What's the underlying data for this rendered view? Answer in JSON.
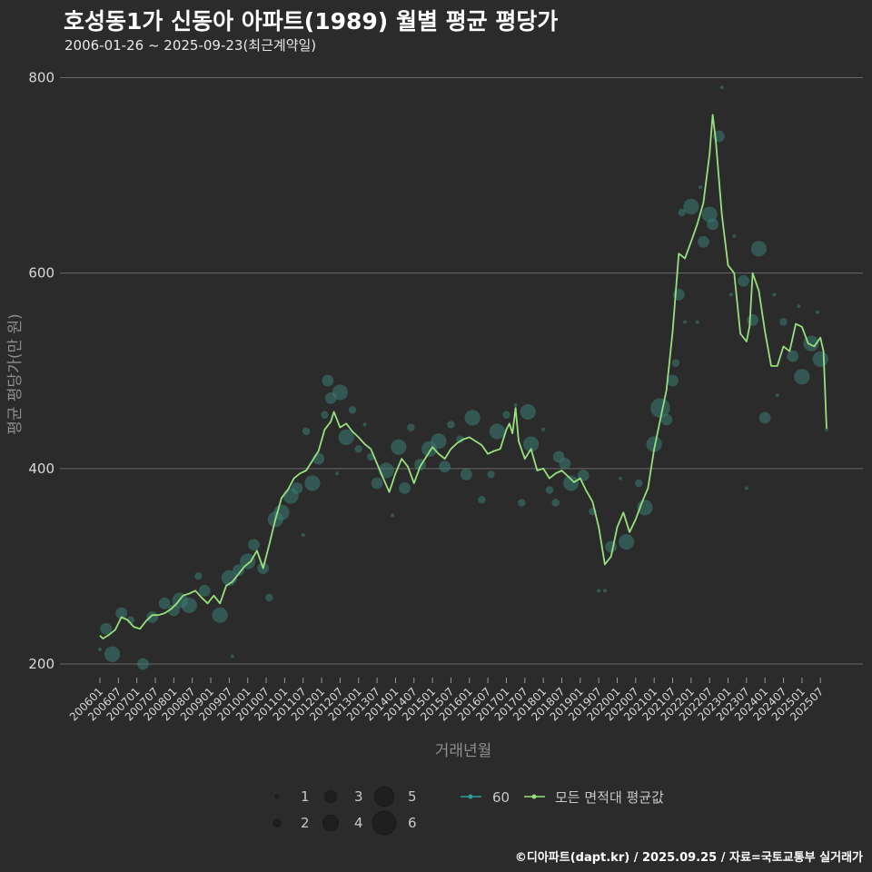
{
  "header": {
    "title": "호성동1가 신동아 아파트(1989) 월별 평균 평당가",
    "subtitle": "2006-01-26 ~ 2025-09-23(최근계약일)"
  },
  "footer": {
    "credit": "©디아파트(dapt.kr) / 2025.09.25 / 자료=국토교통부 실거래가"
  },
  "colors": {
    "background": "#2b2b2c",
    "bubble": "#3a7d75",
    "series_60": "#2aa198",
    "average_line": "#98e07e",
    "grid": "#6a6a6a"
  },
  "chart_data": {
    "type": "line",
    "xlabel": "거래년월",
    "ylabel": "평균 평당가(만 원)",
    "ylim": [
      180,
      800
    ],
    "yticks": [
      200,
      400,
      600,
      800
    ],
    "x_tick_labels": [
      "200601",
      "200607",
      "200701",
      "200707",
      "200801",
      "200807",
      "200901",
      "200907",
      "201001",
      "201007",
      "201101",
      "201107",
      "201201",
      "201207",
      "201301",
      "201307",
      "201401",
      "201407",
      "201501",
      "201507",
      "201601",
      "201607",
      "201701",
      "201707",
      "201801",
      "201807",
      "201901",
      "201907",
      "202001",
      "202007",
      "202101",
      "202107",
      "202201",
      "202207",
      "202301",
      "202307",
      "202401",
      "202407",
      "202501",
      "202507"
    ],
    "grid": true,
    "legend_position": "bottom",
    "size_legend": [
      1,
      2,
      3,
      4,
      5,
      6
    ],
    "series": [
      {
        "name": "모든 면적대 평균값",
        "points": [
          [
            "2006-01",
            229
          ],
          [
            "2006-02",
            226
          ],
          [
            "2006-04",
            230
          ],
          [
            "2006-06",
            235
          ],
          [
            "2006-08",
            248
          ],
          [
            "2006-10",
            245
          ],
          [
            "2006-12",
            238
          ],
          [
            "2007-02",
            236
          ],
          [
            "2007-04",
            244
          ],
          [
            "2007-06",
            250
          ],
          [
            "2007-08",
            250
          ],
          [
            "2007-10",
            252
          ],
          [
            "2007-12",
            256
          ],
          [
            "2008-02",
            262
          ],
          [
            "2008-04",
            270
          ],
          [
            "2008-06",
            272
          ],
          [
            "2008-08",
            275
          ],
          [
            "2008-10",
            268
          ],
          [
            "2008-12",
            262
          ],
          [
            "2009-02",
            270
          ],
          [
            "2009-04",
            262
          ],
          [
            "2009-06",
            280
          ],
          [
            "2009-08",
            284
          ],
          [
            "2009-10",
            292
          ],
          [
            "2009-12",
            300
          ],
          [
            "2010-02",
            305
          ],
          [
            "2010-04",
            316
          ],
          [
            "2010-06",
            298
          ],
          [
            "2010-08",
            322
          ],
          [
            "2010-10",
            348
          ],
          [
            "2010-12",
            370
          ],
          [
            "2011-02",
            378
          ],
          [
            "2011-04",
            390
          ],
          [
            "2011-06",
            395
          ],
          [
            "2011-08",
            398
          ],
          [
            "2011-10",
            408
          ],
          [
            "2011-12",
            418
          ],
          [
            "2012-02",
            440
          ],
          [
            "2012-04",
            448
          ],
          [
            "2012-05",
            458
          ],
          [
            "2012-07",
            442
          ],
          [
            "2012-09",
            446
          ],
          [
            "2012-11",
            438
          ],
          [
            "2013-01",
            432
          ],
          [
            "2013-03",
            425
          ],
          [
            "2013-05",
            420
          ],
          [
            "2013-07",
            405
          ],
          [
            "2013-09",
            390
          ],
          [
            "2013-11",
            376
          ],
          [
            "2014-01",
            395
          ],
          [
            "2014-03",
            410
          ],
          [
            "2014-05",
            402
          ],
          [
            "2014-07",
            385
          ],
          [
            "2014-09",
            402
          ],
          [
            "2014-11",
            412
          ],
          [
            "2015-01",
            422
          ],
          [
            "2015-03",
            415
          ],
          [
            "2015-05",
            410
          ],
          [
            "2015-07",
            420
          ],
          [
            "2015-09",
            426
          ],
          [
            "2015-11",
            430
          ],
          [
            "2016-01",
            432
          ],
          [
            "2016-03",
            428
          ],
          [
            "2016-05",
            424
          ],
          [
            "2016-07",
            415
          ],
          [
            "2016-09",
            418
          ],
          [
            "2016-11",
            420
          ],
          [
            "2017-01",
            440
          ],
          [
            "2017-02",
            446
          ],
          [
            "2017-03",
            436
          ],
          [
            "2017-04",
            462
          ],
          [
            "2017-05",
            428
          ],
          [
            "2017-07",
            410
          ],
          [
            "2017-09",
            420
          ],
          [
            "2017-11",
            398
          ],
          [
            "2018-01",
            400
          ],
          [
            "2018-03",
            390
          ],
          [
            "2018-05",
            395
          ],
          [
            "2018-07",
            398
          ],
          [
            "2018-09",
            392
          ],
          [
            "2018-11",
            386
          ],
          [
            "2019-01",
            390
          ],
          [
            "2019-03",
            377
          ],
          [
            "2019-05",
            366
          ],
          [
            "2019-07",
            340
          ],
          [
            "2019-09",
            302
          ],
          [
            "2019-11",
            310
          ],
          [
            "2020-01",
            340
          ],
          [
            "2020-03",
            355
          ],
          [
            "2020-05",
            335
          ],
          [
            "2020-07",
            348
          ],
          [
            "2020-09",
            365
          ],
          [
            "2020-11",
            380
          ],
          [
            "2021-01",
            420
          ],
          [
            "2021-03",
            450
          ],
          [
            "2021-05",
            480
          ],
          [
            "2021-07",
            540
          ],
          [
            "2021-09",
            620
          ],
          [
            "2021-11",
            615
          ],
          [
            "2022-01",
            632
          ],
          [
            "2022-03",
            650
          ],
          [
            "2022-05",
            672
          ],
          [
            "2022-07",
            722
          ],
          [
            "2022-08",
            762
          ],
          [
            "2022-09",
            736
          ],
          [
            "2022-11",
            660
          ],
          [
            "2023-01",
            608
          ],
          [
            "2023-03",
            600
          ],
          [
            "2023-05",
            538
          ],
          [
            "2023-07",
            530
          ],
          [
            "2023-08",
            546
          ],
          [
            "2023-09",
            600
          ],
          [
            "2023-11",
            582
          ],
          [
            "2024-01",
            540
          ],
          [
            "2024-03",
            505
          ],
          [
            "2024-05",
            505
          ],
          [
            "2024-07",
            525
          ],
          [
            "2024-09",
            520
          ],
          [
            "2024-11",
            548
          ],
          [
            "2025-01",
            545
          ],
          [
            "2025-03",
            528
          ],
          [
            "2025-05",
            525
          ],
          [
            "2025-07",
            534
          ],
          [
            "2025-08",
            520
          ],
          [
            "2025-09",
            441
          ]
        ]
      },
      {
        "name": "60",
        "bubbles": [
          [
            "2006-01",
            215,
            1
          ],
          [
            "2006-03",
            236,
            3
          ],
          [
            "2006-05",
            210,
            4
          ],
          [
            "2006-08",
            252,
            3
          ],
          [
            "2006-11",
            245,
            2
          ],
          [
            "2007-03",
            200,
            3
          ],
          [
            "2007-06",
            248,
            3
          ],
          [
            "2007-10",
            262,
            3
          ],
          [
            "2008-01",
            255,
            3
          ],
          [
            "2008-03",
            265,
            4
          ],
          [
            "2008-06",
            260,
            4
          ],
          [
            "2008-09",
            290,
            2
          ],
          [
            "2008-11",
            275,
            3
          ],
          [
            "2009-04",
            250,
            4
          ],
          [
            "2009-07",
            288,
            4
          ],
          [
            "2009-08",
            208,
            1
          ],
          [
            "2009-10",
            296,
            3
          ],
          [
            "2010-01",
            305,
            4
          ],
          [
            "2010-03",
            322,
            3
          ],
          [
            "2010-06",
            298,
            3
          ],
          [
            "2010-08",
            268,
            2
          ],
          [
            "2010-10",
            348,
            4
          ],
          [
            "2010-12",
            355,
            4
          ],
          [
            "2011-03",
            372,
            4
          ],
          [
            "2011-05",
            380,
            3
          ],
          [
            "2011-07",
            332,
            1
          ],
          [
            "2011-08",
            438,
            2
          ],
          [
            "2011-10",
            385,
            4
          ],
          [
            "2011-12",
            410,
            3
          ],
          [
            "2012-02",
            455,
            2
          ],
          [
            "2012-03",
            490,
            3
          ],
          [
            "2012-04",
            472,
            3
          ],
          [
            "2012-06",
            395,
            1
          ],
          [
            "2012-07",
            478,
            4
          ],
          [
            "2012-09",
            432,
            4
          ],
          [
            "2012-11",
            460,
            2
          ],
          [
            "2013-01",
            420,
            2
          ],
          [
            "2013-03",
            445,
            1
          ],
          [
            "2013-05",
            412,
            2
          ],
          [
            "2013-07",
            385,
            3
          ],
          [
            "2013-10",
            398,
            4
          ],
          [
            "2013-12",
            352,
            1
          ],
          [
            "2014-02",
            422,
            4
          ],
          [
            "2014-04",
            380,
            3
          ],
          [
            "2014-06",
            442,
            2
          ],
          [
            "2014-09",
            404,
            3
          ],
          [
            "2014-12",
            420,
            4
          ],
          [
            "2015-03",
            428,
            4
          ],
          [
            "2015-05",
            402,
            3
          ],
          [
            "2015-07",
            445,
            2
          ],
          [
            "2015-10",
            430,
            2
          ],
          [
            "2015-12",
            394,
            3
          ],
          [
            "2016-02",
            452,
            4
          ],
          [
            "2016-05",
            368,
            2
          ],
          [
            "2016-08",
            394,
            2
          ],
          [
            "2016-10",
            438,
            4
          ],
          [
            "2017-01",
            455,
            2
          ],
          [
            "2017-04",
            465,
            1
          ],
          [
            "2017-06",
            365,
            2
          ],
          [
            "2017-08",
            458,
            4
          ],
          [
            "2017-09",
            425,
            4
          ],
          [
            "2018-01",
            440,
            1
          ],
          [
            "2018-03",
            378,
            2
          ],
          [
            "2018-05",
            365,
            2
          ],
          [
            "2018-06",
            412,
            3
          ],
          [
            "2018-08",
            405,
            3
          ],
          [
            "2018-10",
            385,
            4
          ],
          [
            "2019-02",
            393,
            3
          ],
          [
            "2019-05",
            356,
            2
          ],
          [
            "2019-07",
            275,
            1
          ],
          [
            "2019-09",
            275,
            1
          ],
          [
            "2019-11",
            320,
            3
          ],
          [
            "2020-02",
            390,
            1
          ],
          [
            "2020-04",
            325,
            4
          ],
          [
            "2020-08",
            385,
            2
          ],
          [
            "2020-10",
            360,
            4
          ],
          [
            "2021-01",
            425,
            4
          ],
          [
            "2021-03",
            462,
            5
          ],
          [
            "2021-05",
            450,
            3
          ],
          [
            "2021-07",
            490,
            3
          ],
          [
            "2021-08",
            508,
            2
          ],
          [
            "2021-09",
            578,
            3
          ],
          [
            "2021-10",
            662,
            2
          ],
          [
            "2021-11",
            550,
            1
          ],
          [
            "2022-01",
            668,
            4
          ],
          [
            "2022-03",
            550,
            1
          ],
          [
            "2022-04",
            688,
            1
          ],
          [
            "2022-05",
            632,
            3
          ],
          [
            "2022-07",
            660,
            4
          ],
          [
            "2022-08",
            650,
            3
          ],
          [
            "2022-10",
            740,
            3
          ],
          [
            "2022-11",
            790,
            1
          ],
          [
            "2023-02",
            578,
            1
          ],
          [
            "2023-03",
            638,
            1
          ],
          [
            "2023-06",
            592,
            3
          ],
          [
            "2023-07",
            380,
            1
          ],
          [
            "2023-09",
            552,
            3
          ],
          [
            "2023-11",
            625,
            4
          ],
          [
            "2024-01",
            452,
            3
          ],
          [
            "2024-04",
            578,
            1
          ],
          [
            "2024-05",
            475,
            1
          ],
          [
            "2024-07",
            550,
            2
          ],
          [
            "2024-10",
            515,
            3
          ],
          [
            "2024-12",
            566,
            1
          ],
          [
            "2025-01",
            494,
            4
          ],
          [
            "2025-04",
            528,
            4
          ],
          [
            "2025-06",
            560,
            1
          ],
          [
            "2025-07",
            512,
            4
          ],
          [
            "2025-09",
            440,
            1
          ]
        ]
      }
    ]
  }
}
